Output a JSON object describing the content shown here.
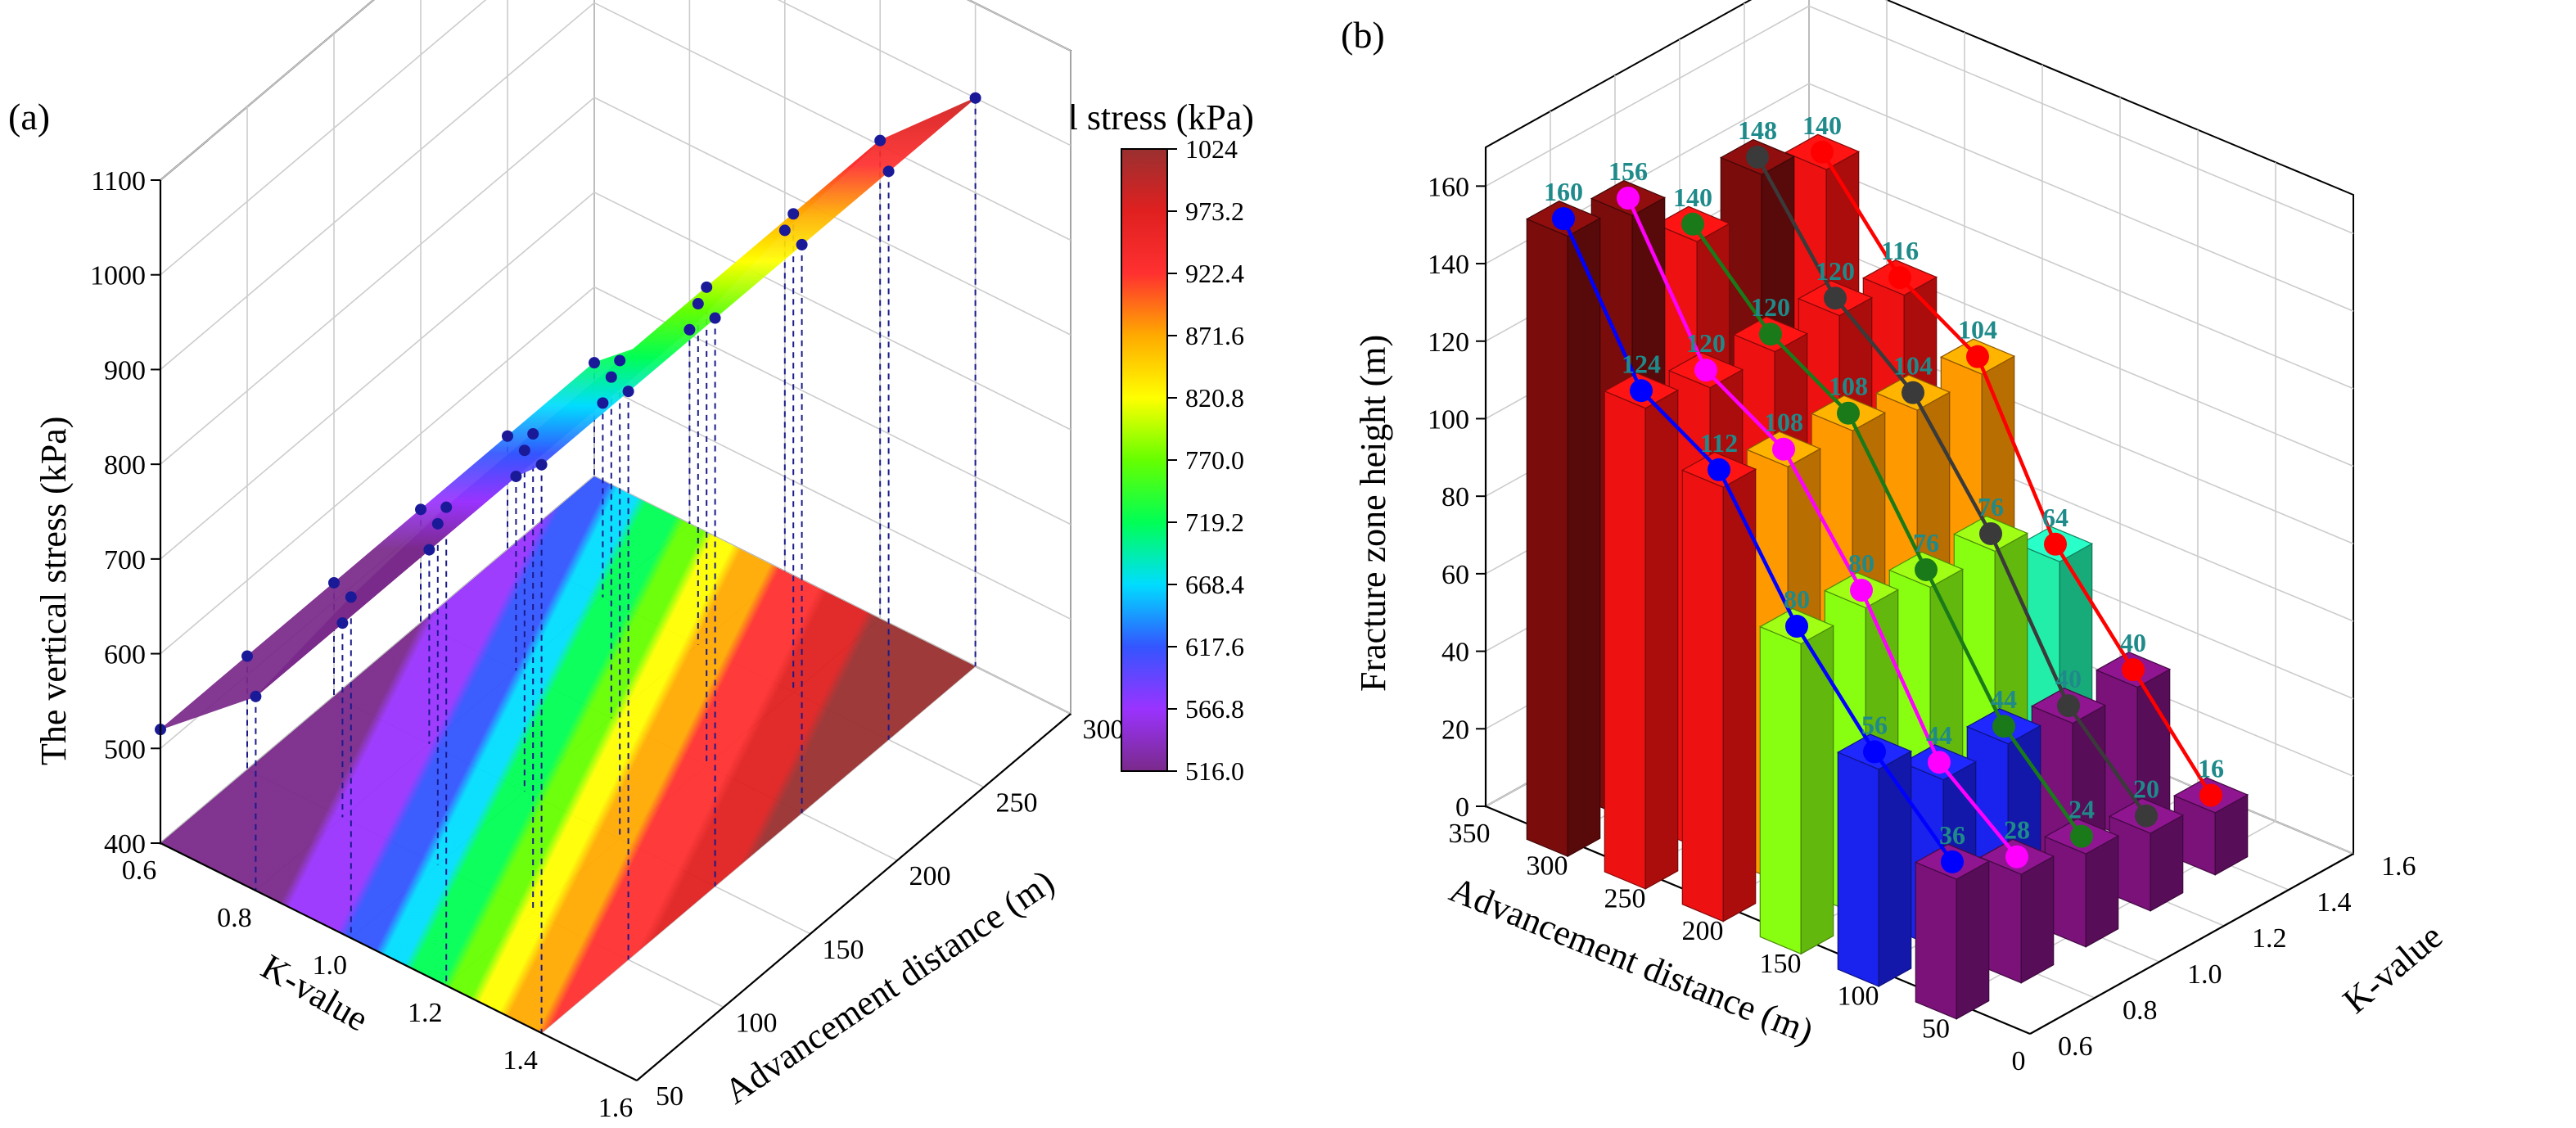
{
  "panels": {
    "a": {
      "label": "(a)",
      "colorbar_title": "Vertical stress (kPa)",
      "zlabel": "The vertical stress (kPa)",
      "xlabel": "K-value",
      "ylabel": "Advancement distance (m)"
    },
    "b": {
      "label": "(b)",
      "zlabel": "Fracture zone height (m)",
      "xlabel": "Advancement distance (m)",
      "ylabel": "K-value"
    }
  },
  "chart_data": [
    {
      "type": "surface3d",
      "title": "",
      "xlabel": "K-value",
      "ylabel": "Advancement distance (m)",
      "zlabel": "The vertical stress (kPa)",
      "x_ticks": [
        "0.6",
        "0.8",
        "1.0",
        "1.2",
        "1.4",
        "1.6"
      ],
      "y_ticks": [
        "50",
        "100",
        "150",
        "200",
        "250",
        "300"
      ],
      "z_ticks": [
        "400",
        "500",
        "600",
        "700",
        "800",
        "900",
        "1000",
        "1100"
      ],
      "xlim": [
        0.6,
        1.6
      ],
      "ylim": [
        50,
        300
      ],
      "zlim": [
        400,
        1100
      ],
      "k_values": [
        0.6,
        0.8,
        1.0,
        1.2,
        1.4
      ],
      "distances": [
        50,
        100,
        150,
        200,
        250,
        300
      ],
      "stress": [
        [
          520,
          520,
          520,
          520,
          520,
          520
        ],
        [
          605,
          605,
          605,
          605,
          605,
          605
        ],
        [
          760,
          760,
          760,
          760,
          760,
          760
        ],
        [
          905,
          905,
          905,
          905,
          905,
          905
        ],
        [
          1000,
          1000,
          1000,
          1000,
          1000,
          1000
        ]
      ],
      "colorbar": {
        "title": "Vertical stress (kPa)",
        "min": 516.0,
        "max": 1024,
        "ticks": [
          "1024",
          "973.2",
          "922.4",
          "871.6",
          "820.8",
          "770.0",
          "719.2",
          "668.4",
          "617.6",
          "566.8",
          "516.0"
        ]
      }
    },
    {
      "type": "bar3d",
      "title": "",
      "xlabel": "Advancement distance (m)",
      "ylabel": "K-value",
      "zlabel": "Fracture zone height (m)",
      "x_ticks": [
        "50",
        "100",
        "150",
        "200",
        "250",
        "300",
        "350"
      ],
      "y_ticks": [
        "0.6",
        "0.8",
        "1.0",
        "1.2",
        "1.4",
        "1.6"
      ],
      "z_ticks": [
        "0",
        "20",
        "40",
        "60",
        "80",
        "100",
        "120",
        "140",
        "160"
      ],
      "zlim": [
        0,
        170
      ],
      "k_values": [
        0.6,
        0.8,
        1.0,
        1.2,
        1.4
      ],
      "distances": [
        300,
        250,
        200,
        150,
        100,
        50
      ],
      "series": [
        {
          "k": 0.6,
          "line_color": "#0000ff",
          "values": [
            160,
            124,
            112,
            80,
            56,
            36
          ]
        },
        {
          "k": 0.8,
          "line_color": "#ff00ff",
          "values": [
            156,
            120,
            108,
            80,
            44,
            28
          ]
        },
        {
          "k": 1.0,
          "line_color": "#1a7a1a",
          "values": [
            140,
            120,
            108,
            76,
            44,
            24
          ]
        },
        {
          "k": 1.2,
          "line_color": "#3a3a3a",
          "values": [
            148,
            120,
            104,
            76,
            40,
            20
          ]
        },
        {
          "k": 1.4,
          "line_color": "#ff0000",
          "values": [
            140,
            116,
            104,
            64,
            40,
            16
          ]
        }
      ]
    }
  ]
}
